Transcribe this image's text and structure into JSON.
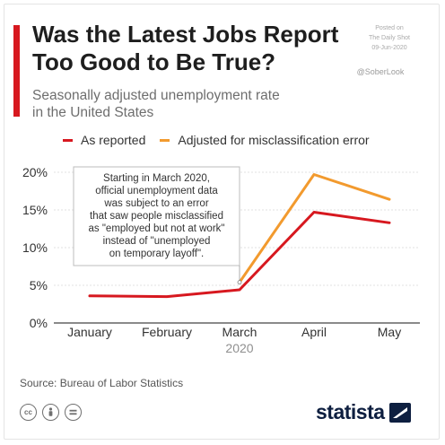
{
  "header": {
    "title_line1": "Was the Latest Jobs Report",
    "title_line2": "Too Good to Be True?",
    "subtitle_line1": "Seasonally adjusted unemployment rate",
    "subtitle_line2": "in the United States"
  },
  "watermark": {
    "line1": "Posted on",
    "line2": "The Daily Shot",
    "line3": "09-Jun-2020",
    "handle": "@SoberLook"
  },
  "legend": {
    "reported": "As reported",
    "adjusted": "Adjusted for misclassification error"
  },
  "colors": {
    "accent": "#d7181f",
    "reported": "#d7181f",
    "adjusted": "#f29a2e",
    "brand": "#0e1f40"
  },
  "chart_data": {
    "type": "line",
    "categories": [
      "January",
      "February",
      "March",
      "April",
      "May"
    ],
    "xlabel": "2020",
    "ylabel": "",
    "ylim": [
      0,
      20
    ],
    "yticks": [
      "0%",
      "5%",
      "10%",
      "15%",
      "20%"
    ],
    "grid": true,
    "legend_position": "top",
    "series": [
      {
        "name": "As reported",
        "values": [
          3.6,
          3.5,
          4.4,
          14.7,
          13.3
        ]
      },
      {
        "name": "Adjusted for misclassification error",
        "values": [
          null,
          null,
          5.4,
          19.7,
          16.4
        ]
      }
    ],
    "annotation": [
      "Starting in March 2020,",
      "official unemployment data",
      "was subject to an error",
      "that saw people misclassified",
      "as \"employed but not at work\"",
      "instead of \"unemployed",
      "on temporary layoff\"."
    ]
  },
  "footer": {
    "source": "Source: Bureau of Labor Statistics",
    "license_icons": [
      "cc-icon",
      "by-icon",
      "nd-icon"
    ],
    "brand": "statista"
  }
}
